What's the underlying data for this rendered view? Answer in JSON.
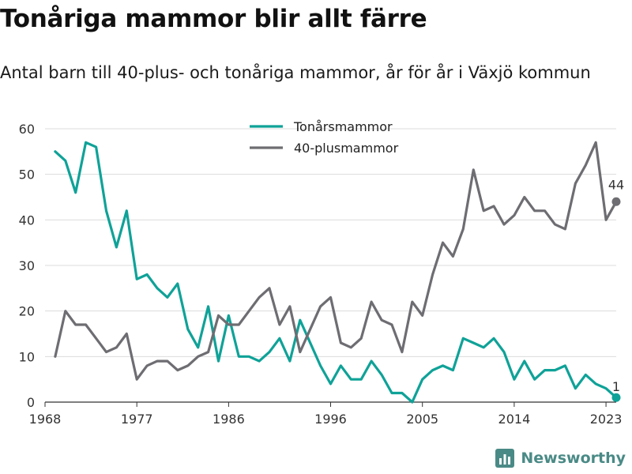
{
  "title": "Tonåriga mammor blir allt färre",
  "subtitle": "Antal barn till 40-plus- och tonåriga mammor, år för år i Växjö kommun",
  "brand": {
    "name": "Newsworthy",
    "icon": "newsworthy-logo-icon"
  },
  "colors": {
    "teen": "#0fa298",
    "forty": "#6e6d72",
    "grid": "#dcdcdc",
    "axis": "#333333"
  },
  "chart_data": {
    "type": "line",
    "title": "Tonåriga mammor blir allt färre",
    "subtitle": "Antal barn till 40-plus- och tonåriga mammor, år för år i Växjö kommun",
    "xlabel": "",
    "ylabel": "",
    "xlim": [
      1968,
      2024
    ],
    "ylim": [
      0,
      60
    ],
    "x_ticks": [
      1968,
      1977,
      1986,
      1996,
      2005,
      2014,
      2023
    ],
    "y_ticks": [
      0,
      10,
      20,
      30,
      40,
      50,
      60
    ],
    "grid": true,
    "legend_position": "top-center",
    "series": [
      {
        "name": "Tonårsmammor",
        "color": "#0fa298",
        "x": [
          1969,
          1970,
          1971,
          1972,
          1973,
          1974,
          1975,
          1976,
          1977,
          1978,
          1979,
          1980,
          1981,
          1982,
          1983,
          1984,
          1985,
          1986,
          1987,
          1988,
          1989,
          1990,
          1991,
          1992,
          1993,
          1994,
          1995,
          1996,
          1997,
          1998,
          1999,
          2000,
          2001,
          2002,
          2003,
          2004,
          2005,
          2006,
          2007,
          2008,
          2009,
          2010,
          2011,
          2012,
          2013,
          2014,
          2015,
          2016,
          2017,
          2018,
          2019,
          2020,
          2021,
          2022,
          2023,
          2024
        ],
        "values": [
          55,
          53,
          46,
          57,
          56,
          42,
          34,
          42,
          27,
          28,
          25,
          23,
          26,
          16,
          12,
          21,
          9,
          19,
          10,
          10,
          9,
          11,
          14,
          9,
          18,
          13,
          8,
          4,
          8,
          5,
          5,
          9,
          6,
          2,
          2,
          0,
          5,
          7,
          8,
          7,
          14,
          13,
          12,
          14,
          11,
          5,
          9,
          5,
          7,
          7,
          8,
          3,
          6,
          4,
          3,
          1
        ],
        "end_label": "1"
      },
      {
        "name": "40-plusmammor",
        "color": "#6e6d72",
        "x": [
          1969,
          1970,
          1971,
          1972,
          1973,
          1974,
          1975,
          1976,
          1977,
          1978,
          1979,
          1980,
          1981,
          1982,
          1983,
          1984,
          1985,
          1986,
          1987,
          1988,
          1989,
          1990,
          1991,
          1992,
          1993,
          1994,
          1995,
          1996,
          1997,
          1998,
          1999,
          2000,
          2001,
          2002,
          2003,
          2004,
          2005,
          2006,
          2007,
          2008,
          2009,
          2010,
          2011,
          2012,
          2013,
          2014,
          2015,
          2016,
          2017,
          2018,
          2019,
          2020,
          2021,
          2022,
          2023,
          2024
        ],
        "values": [
          10,
          20,
          17,
          17,
          14,
          11,
          12,
          15,
          5,
          8,
          9,
          9,
          7,
          8,
          10,
          11,
          19,
          17,
          17,
          20,
          23,
          25,
          17,
          21,
          11,
          16,
          21,
          23,
          13,
          12,
          14,
          22,
          18,
          17,
          11,
          22,
          19,
          28,
          35,
          32,
          38,
          51,
          42,
          43,
          39,
          41,
          45,
          42,
          42,
          39,
          38,
          48,
          52,
          57,
          40,
          44
        ],
        "end_label": "44"
      }
    ]
  }
}
